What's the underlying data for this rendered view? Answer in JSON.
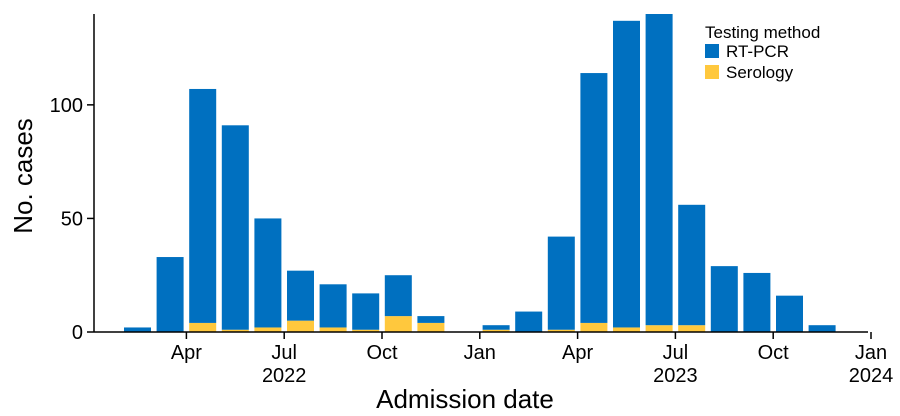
{
  "chart_data": {
    "type": "bar",
    "stacked": true,
    "title": "",
    "xlabel": "Admission date",
    "ylabel": "No. cases",
    "ylim": [
      0,
      140
    ],
    "y_ticks": [
      0,
      50,
      100
    ],
    "grid": false,
    "legend": {
      "title": "Testing method",
      "placement": "top-right"
    },
    "colors": {
      "RT-PCR": "#0070c0",
      "Serology": "#ffc83d"
    },
    "categories": [
      "2022-02",
      "2022-03",
      "2022-04",
      "2022-05",
      "2022-06",
      "2022-07",
      "2022-08",
      "2022-09",
      "2022-10",
      "2022-11",
      "2022-12",
      "2023-01",
      "2023-02",
      "2023-03",
      "2023-04",
      "2023-05",
      "2023-06",
      "2023-07",
      "2023-08",
      "2023-09",
      "2023-10",
      "2023-11",
      "2023-12"
    ],
    "series": [
      {
        "name": "Serology",
        "values": [
          0,
          0,
          4,
          1,
          2,
          5,
          2,
          1,
          7,
          4,
          0,
          1,
          0,
          1,
          4,
          2,
          3,
          3,
          0,
          0,
          0,
          0,
          0
        ]
      },
      {
        "name": "RT-PCR",
        "values": [
          2,
          33,
          103,
          90,
          48,
          22,
          19,
          16,
          18,
          3,
          0,
          2,
          9,
          41,
          110,
          135,
          137,
          53,
          29,
          26,
          16,
          3,
          0
        ]
      }
    ],
    "x_ticks": [
      {
        "label": "Apr",
        "year": "",
        "pos": 2
      },
      {
        "label": "Jul",
        "year": "2022",
        "pos": 5
      },
      {
        "label": "Oct",
        "year": "",
        "pos": 8
      },
      {
        "label": "Jan",
        "year": "",
        "pos": 11
      },
      {
        "label": "Apr",
        "year": "",
        "pos": 14
      },
      {
        "label": "Jul",
        "year": "2023",
        "pos": 17
      },
      {
        "label": "Oct",
        "year": "",
        "pos": 20
      },
      {
        "label": "Jan",
        "year": "2024",
        "pos": 23
      }
    ]
  }
}
